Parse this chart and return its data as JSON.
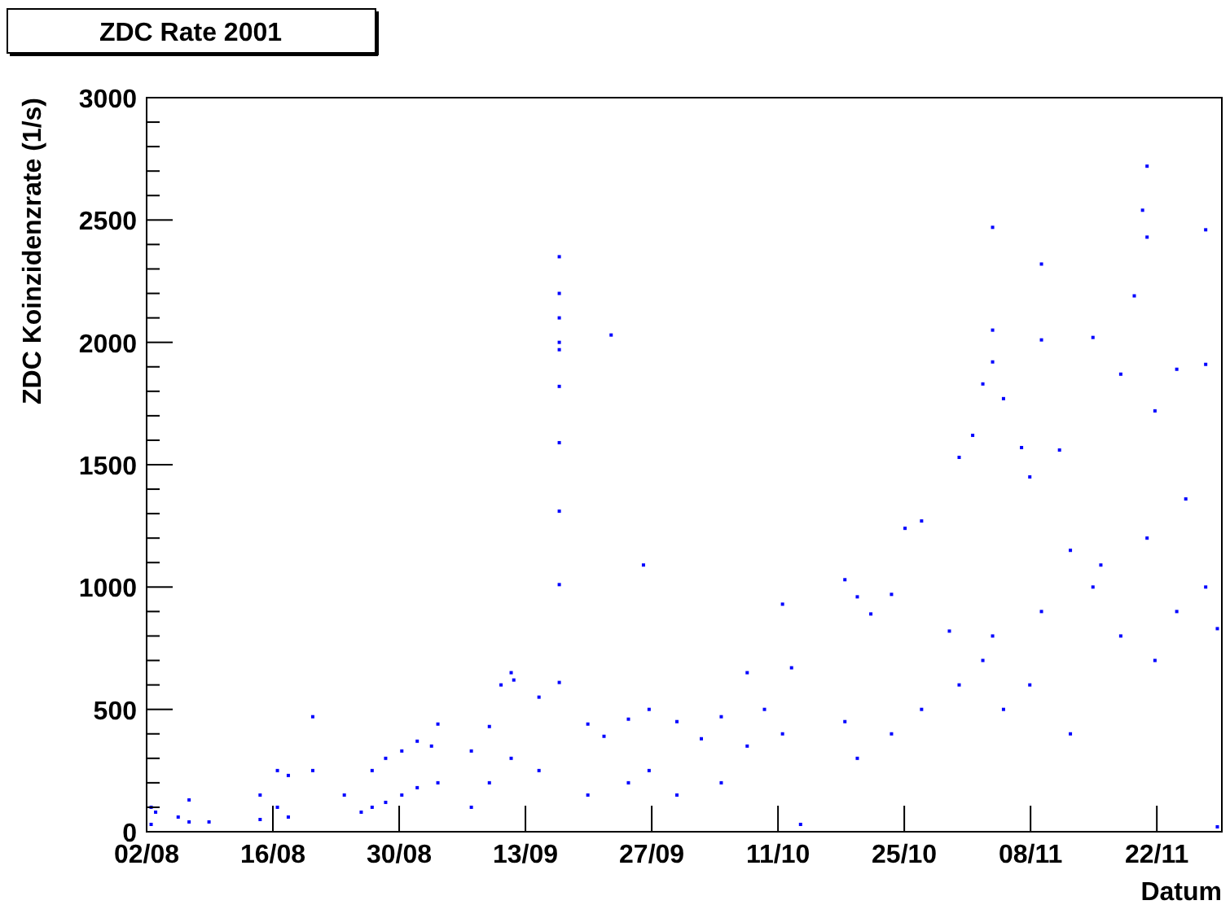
{
  "chart_data": {
    "type": "scatter",
    "title": "ZDC Rate 2001",
    "xlabel": "Datum",
    "ylabel": "ZDC Koinzidenzrate (1/s)",
    "xlim": [
      "2001-08-02T00:00",
      "2001-11-29T05:00"
    ],
    "xticks": [
      {
        "value": "2001-08-02",
        "label": "02/08"
      },
      {
        "value": "2001-08-16",
        "label": "16/08"
      },
      {
        "value": "2001-08-30",
        "label": "30/08"
      },
      {
        "value": "2001-09-13",
        "label": "13/09"
      },
      {
        "value": "2001-09-27",
        "label": "27/09"
      },
      {
        "value": "2001-10-11",
        "label": "11/10"
      },
      {
        "value": "2001-10-25",
        "label": "25/10"
      },
      {
        "value": "2001-11-08",
        "label": "08/11"
      },
      {
        "value": "2001-11-22",
        "label": "22/11"
      }
    ],
    "ylim": [
      0,
      3000
    ],
    "yticks": [
      0,
      {
        "value": 100,
        "label": null
      },
      {
        "value": 200,
        "label": null
      },
      {
        "value": 300,
        "label": null
      },
      {
        "value": 400,
        "label": null
      },
      500,
      {
        "value": 600,
        "label": null
      },
      {
        "value": 700,
        "label": null
      },
      {
        "value": 800,
        "label": null
      },
      {
        "value": 900,
        "label": null
      },
      1000,
      {
        "value": 1100,
        "label": null
      },
      {
        "value": 1200,
        "label": null
      },
      {
        "value": 1300,
        "label": null
      },
      {
        "value": 1400,
        "label": null
      },
      1500,
      {
        "value": 1600,
        "label": null
      },
      {
        "value": 1700,
        "label": null
      },
      {
        "value": 1800,
        "label": null
      },
      {
        "value": 1900,
        "label": null
      },
      2000,
      {
        "value": 2100,
        "label": null
      },
      {
        "value": 2200,
        "label": null
      },
      {
        "value": 2300,
        "label": null
      },
      {
        "value": 2400,
        "label": null
      },
      2500,
      {
        "value": 2600,
        "label": null
      },
      {
        "value": 2700,
        "label": null
      },
      {
        "value": 2800,
        "label": null
      },
      {
        "value": 2900,
        "label": null
      },
      3000
    ],
    "grid": false,
    "marker": "square",
    "series": [
      {
        "color": "#0000ff",
        "x": [
          "2001-08-02T12:00",
          "2001-08-02T12:00",
          "2001-08-03T00:00",
          "2001-08-05T12:00",
          "2001-08-06T17:00",
          "2001-08-06T17:00",
          "2001-08-08T22:00",
          "2001-08-14T14:00",
          "2001-08-14T14:00",
          "2001-08-16T12:00",
          "2001-08-16T12:00",
          "2001-08-17T17:00",
          "2001-08-17T17:00",
          "2001-08-20T10:00",
          "2001-08-20T10:00",
          "2001-08-23T22:00",
          "2001-08-25T19:00",
          "2001-08-27T00:00",
          "2001-08-27T00:00",
          "2001-08-28T12:00",
          "2001-08-28T12:00",
          "2001-08-30T07:00",
          "2001-08-30T07:00",
          "2001-09-01T00:00",
          "2001-09-01T00:00",
          "2001-09-02T14:00",
          "2001-09-03T07:00",
          "2001-09-03T07:00",
          "2001-09-07T00:00",
          "2001-09-07T00:00",
          "2001-09-09T00:00",
          "2001-09-09T00:00",
          "2001-09-10T07:00",
          "2001-09-11T10:00",
          "2001-09-11T10:00",
          "2001-09-11T17:00",
          "2001-09-14T12:00",
          "2001-09-14T12:00",
          "2001-09-16T18:00",
          "2001-09-16T18:00",
          "2001-09-16T18:00",
          "2001-09-16T18:00",
          "2001-09-16T18:00",
          "2001-09-16T18:00",
          "2001-09-16T18:00",
          "2001-09-16T18:00",
          "2001-09-16T18:00",
          "2001-09-16T18:00",
          "2001-09-19T22:00",
          "2001-09-19T22:00",
          "2001-09-21T17:00",
          "2001-09-22T12:00",
          "2001-09-24T10:00",
          "2001-09-24T10:00",
          "2001-09-26T02:00",
          "2001-09-26T17:00",
          "2001-09-26T17:00",
          "2001-09-29T19:00",
          "2001-09-29T19:00",
          "2001-10-02T12:00",
          "2001-10-04T17:00",
          "2001-10-04T17:00",
          "2001-10-07T14:00",
          "2001-10-07T14:00",
          "2001-10-09T12:00",
          "2001-10-11T12:00",
          "2001-10-11T12:00",
          "2001-10-12T12:00",
          "2001-10-13T12:00",
          "2001-10-18T10:00",
          "2001-10-18T10:00",
          "2001-10-19T19:00",
          "2001-10-19T19:00",
          "2001-10-21T07:00",
          "2001-10-23T14:00",
          "2001-10-23T14:00",
          "2001-10-25T02:00",
          "2001-10-26T22:00",
          "2001-10-26T22:00",
          "2001-10-30T00:00",
          "2001-10-31T02:00",
          "2001-10-31T02:00",
          "2001-11-01T14:00",
          "2001-11-02T17:00",
          "2001-11-02T17:00",
          "2001-11-03T19:00",
          "2001-11-03T19:00",
          "2001-11-03T19:00",
          "2001-11-03T19:00",
          "2001-11-05T00:00",
          "2001-11-05T00:00",
          "2001-11-07T00:00",
          "2001-11-07T22:00",
          "2001-11-07T22:00",
          "2001-11-09T05:00",
          "2001-11-09T05:00",
          "2001-11-09T05:00",
          "2001-11-11T05:00",
          "2001-11-12T10:00",
          "2001-11-12T10:00",
          "2001-11-14T22:00",
          "2001-11-14T22:00",
          "2001-11-15T19:00",
          "2001-11-18T00:00",
          "2001-11-18T00:00",
          "2001-11-19T12:00",
          "2001-11-20T10:00",
          "2001-11-20T22:00",
          "2001-11-20T22:00",
          "2001-11-20T22:00",
          "2001-11-21T19:00",
          "2001-11-21T19:00",
          "2001-11-24T05:00",
          "2001-11-24T05:00",
          "2001-11-25T05:00",
          "2001-11-27T10:00",
          "2001-11-27T10:00",
          "2001-11-27T10:00",
          "2001-11-28T17:00",
          "2001-11-28T17:00"
        ],
        "values": [
          100,
          30,
          80,
          60,
          130,
          40,
          40,
          150,
          50,
          250,
          100,
          230,
          60,
          470,
          250,
          150,
          80,
          250,
          100,
          300,
          120,
          330,
          150,
          370,
          180,
          350,
          440,
          200,
          330,
          100,
          430,
          200,
          600,
          650,
          300,
          620,
          550,
          250,
          2350,
          2200,
          2100,
          2000,
          1970,
          1820,
          1590,
          1310,
          1010,
          610,
          440,
          150,
          390,
          2030,
          460,
          200,
          1090,
          500,
          250,
          450,
          150,
          380,
          470,
          200,
          650,
          350,
          500,
          930,
          400,
          670,
          30,
          1030,
          450,
          960,
          300,
          890,
          970,
          400,
          1240,
          1270,
          500,
          820,
          1530,
          600,
          1620,
          1830,
          700,
          2470,
          2050,
          1920,
          800,
          1770,
          500,
          1570,
          1450,
          600,
          2320,
          2010,
          900,
          1560,
          1150,
          400,
          2020,
          1000,
          1090,
          1870,
          800,
          2190,
          2540,
          2720,
          2430,
          1200,
          1720,
          700,
          1890,
          900,
          1360,
          2460,
          1910,
          1000,
          830,
          20
        ]
      }
    ]
  }
}
